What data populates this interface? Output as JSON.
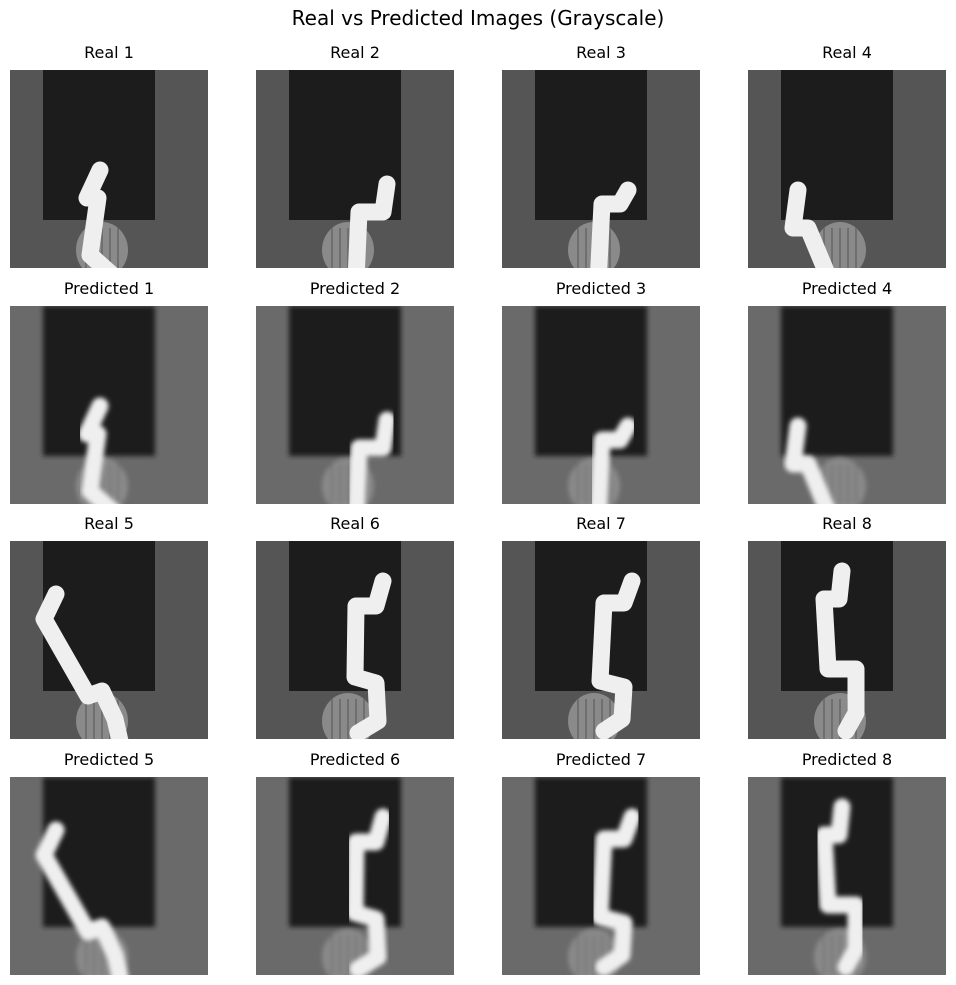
{
  "figure": {
    "title": "Real vs Predicted Images (Grayscale)"
  },
  "panels": [
    {
      "title": "Real 1",
      "kind": "real",
      "pose": 1
    },
    {
      "title": "Real 2",
      "kind": "real",
      "pose": 2
    },
    {
      "title": "Real 3",
      "kind": "real",
      "pose": 3
    },
    {
      "title": "Real 4",
      "kind": "real",
      "pose": 4
    },
    {
      "title": "Predicted 1",
      "kind": "predicted",
      "pose": 1
    },
    {
      "title": "Predicted 2",
      "kind": "predicted",
      "pose": 2
    },
    {
      "title": "Predicted 3",
      "kind": "predicted",
      "pose": 3
    },
    {
      "title": "Predicted 4",
      "kind": "predicted",
      "pose": 4
    },
    {
      "title": "Real 5",
      "kind": "real",
      "pose": 5
    },
    {
      "title": "Real 6",
      "kind": "real",
      "pose": 6
    },
    {
      "title": "Real 7",
      "kind": "real",
      "pose": 7
    },
    {
      "title": "Real 8",
      "kind": "real",
      "pose": 8
    },
    {
      "title": "Predicted 5",
      "kind": "predicted",
      "pose": 5
    },
    {
      "title": "Predicted 6",
      "kind": "predicted",
      "pose": 6
    },
    {
      "title": "Predicted 7",
      "kind": "predicted",
      "pose": 7
    },
    {
      "title": "Predicted 8",
      "kind": "predicted",
      "pose": 8
    }
  ],
  "colors": {
    "real_background": "#555555",
    "predicted_background": "#6a6a6a",
    "dark_board": "#1c1c1c",
    "arm": "#efefef",
    "base": "#8a8a8a"
  }
}
